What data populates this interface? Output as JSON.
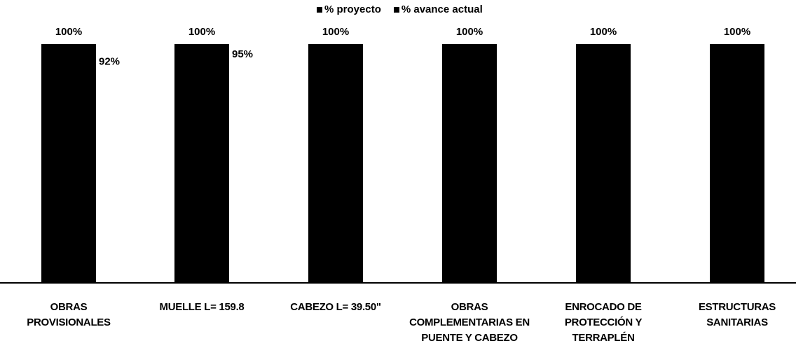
{
  "chart_data": {
    "type": "bar",
    "categories": [
      "OBRAS PROVISIONALES",
      "MUELLE L= 159.8",
      "CABEZO L= 39.50\"",
      "OBRAS COMPLEMENTARIAS EN PUENTE Y CABEZO",
      "ENROCADO DE PROTECCIÓN Y TERRAPLÉN",
      "ESTRUCTURAS SANITARIAS"
    ],
    "series": [
      {
        "name": "% proyecto",
        "values": [
          100,
          100,
          100,
          100,
          100,
          100
        ],
        "labels": [
          "100%",
          "100%",
          "100%",
          "100%",
          "100%",
          "100%"
        ],
        "color": "#000000"
      },
      {
        "name": "% avance actual",
        "values": [
          92,
          95,
          null,
          null,
          null,
          null
        ],
        "labels": [
          "92%",
          "95%",
          "",
          "",
          "",
          ""
        ],
        "color": "#000000"
      }
    ],
    "ylim": [
      0,
      100
    ],
    "legend_position": "top-center",
    "grid": false
  },
  "legend": {
    "items": [
      {
        "name": "% proyecto"
      },
      {
        "name": "% avance actual"
      }
    ]
  }
}
